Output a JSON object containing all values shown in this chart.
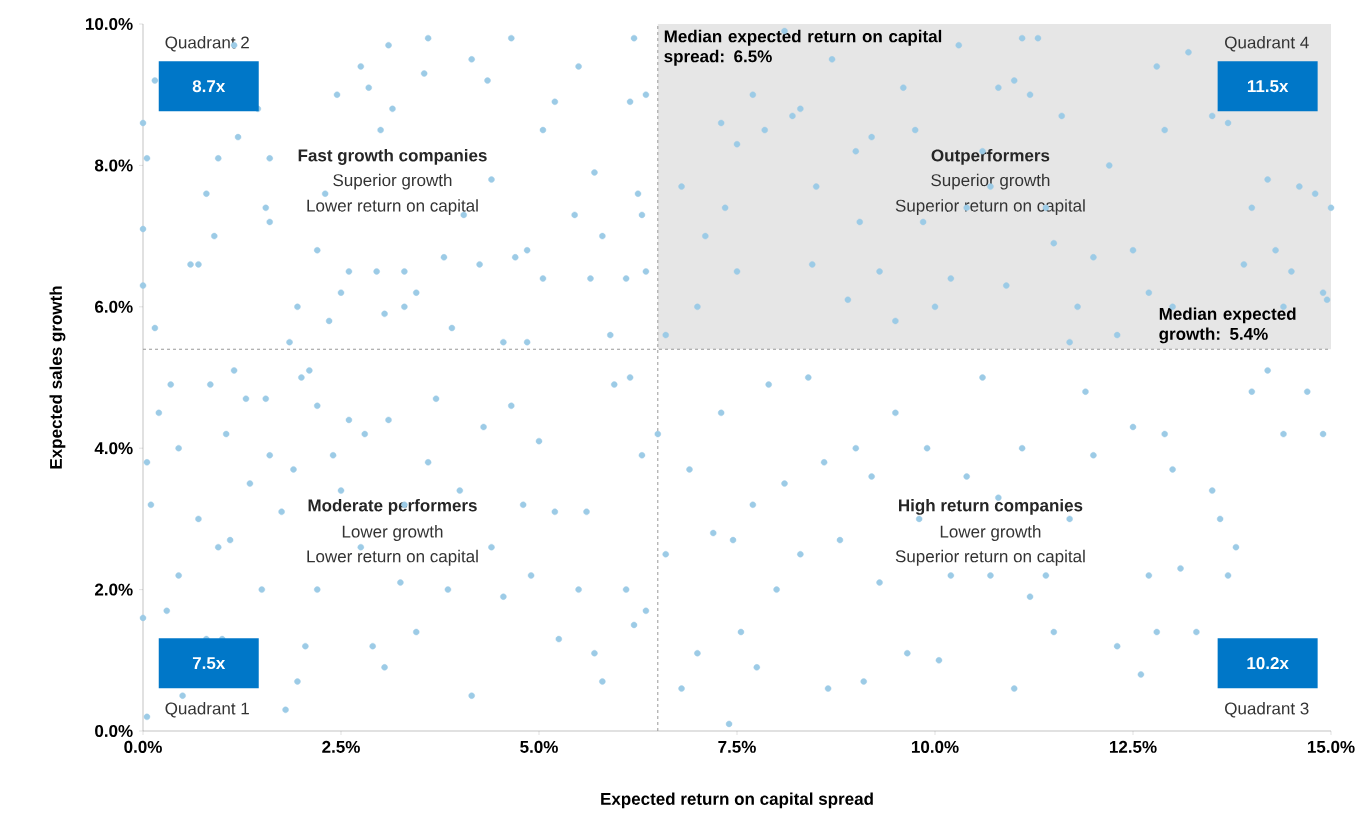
{
  "chart_data": {
    "type": "scatter",
    "xlabel": "Expected return on capital spread",
    "ylabel": "Expected sales growth",
    "marker": "circle",
    "color": "#9ccbe6",
    "xlim": [
      0,
      15
    ],
    "ylim": [
      0,
      10
    ],
    "xticks": [
      {
        "value": 0,
        "label": "0.0%"
      },
      {
        "value": 2.5,
        "label": "2.5%"
      },
      {
        "value": 5,
        "label": "5.0%"
      },
      {
        "value": 7.5,
        "label": "7.5%"
      },
      {
        "value": 10,
        "label": "10.0%"
      },
      {
        "value": 12.5,
        "label": "12.5%"
      },
      {
        "value": 15,
        "label": "15.0%"
      }
    ],
    "yticks": [
      {
        "value": 0,
        "label": "0.0%"
      },
      {
        "value": 2,
        "label": "2.0%"
      },
      {
        "value": 4,
        "label": "4.0%"
      },
      {
        "value": 6,
        "label": "6.0%"
      },
      {
        "value": 8,
        "label": "8.0%"
      },
      {
        "value": 10,
        "label": "10.0%"
      }
    ],
    "ref_lines": [
      {
        "axis": "x",
        "value": 6.5,
        "label": "Median expected return on capital spread: 6.5%",
        "color": "#999999",
        "line_style": "dashed"
      },
      {
        "axis": "y",
        "value": 5.4,
        "label": "Median expected growth: 5.4%",
        "color": "#999999",
        "line_style": "dashed"
      }
    ],
    "bands": [
      {
        "axis": "y",
        "from": 5.4,
        "to": 10,
        "color": "#e6e6e6"
      }
    ],
    "annotations": [
      "Quadrant 2",
      "8.7x",
      "Quadrant 4",
      "11.5x",
      "Quadrant 1",
      "7.5x",
      "Quadrant 3",
      "10.2x",
      "Fast growth companies",
      "Superior growth",
      "Lower return on capital",
      "Outperformers",
      "Superior growth",
      "Superior return on capital",
      "Moderate performers",
      "Lower growth",
      "Lower return on capital",
      "High return companies",
      "Lower growth",
      "Superior return on capital"
    ],
    "x": [
      0.0,
      0.05,
      0.0,
      0.0,
      0.15,
      0.15,
      0.6,
      0.7,
      0.8,
      0.9,
      0.95,
      1.2,
      1.15,
      1.45,
      1.55,
      1.6,
      1.6,
      1.85,
      1.95,
      2.1,
      2.2,
      2.3,
      2.45,
      2.35,
      2.5,
      2.6,
      2.75,
      2.85,
      2.95,
      3.0,
      3.05,
      3.1,
      3.15,
      3.3,
      3.3,
      3.45,
      3.6,
      3.55,
      3.8,
      3.9,
      4.05,
      4.15,
      4.25,
      4.35,
      4.4,
      4.55,
      4.65,
      4.7,
      4.85,
      4.85,
      5.05,
      5.05,
      5.2,
      5.5,
      5.45,
      5.7,
      5.65,
      5.8,
      5.9,
      6.1,
      6.15,
      6.2,
      6.25,
      6.3,
      6.35,
      6.35,
      6.6,
      6.8,
      7.0,
      7.1,
      7.3,
      7.35,
      7.5,
      7.5,
      7.7,
      7.85,
      8.1,
      8.2,
      8.3,
      8.45,
      8.5,
      8.7,
      8.9,
      9.05,
      9.0,
      9.2,
      9.3,
      9.5,
      9.6,
      9.75,
      9.85,
      10.0,
      10.2,
      10.3,
      10.4,
      10.6,
      10.7,
      10.8,
      10.9,
      11.0,
      11.1,
      11.2,
      11.3,
      11.4,
      11.5,
      11.6,
      11.7,
      11.8,
      12.0,
      12.2,
      12.3,
      12.5,
      12.7,
      12.8,
      12.9,
      13.0,
      13.2,
      13.5,
      13.7,
      13.9,
      14.0,
      14.2,
      14.3,
      14.4,
      14.5,
      14.6,
      14.8,
      14.9,
      15.0,
      14.95,
      0.0,
      0.05,
      0.05,
      0.1,
      0.2,
      0.3,
      0.35,
      0.45,
      0.45,
      0.5,
      0.7,
      0.8,
      0.85,
      0.95,
      1.0,
      1.05,
      1.1,
      1.15,
      1.3,
      1.35,
      1.5,
      1.55,
      1.6,
      1.75,
      1.8,
      1.95,
      1.9,
      2.0,
      2.05,
      2.2,
      2.2,
      2.4,
      2.5,
      2.6,
      2.75,
      2.8,
      2.9,
      3.05,
      3.1,
      3.25,
      3.3,
      3.45,
      3.6,
      3.7,
      3.85,
      4.0,
      4.15,
      4.3,
      4.4,
      4.55,
      4.65,
      4.8,
      4.9,
      5.0,
      5.2,
      5.25,
      5.5,
      5.6,
      5.7,
      5.8,
      5.95,
      6.1,
      6.2,
      6.3,
      6.35,
      6.15,
      6.5,
      6.6,
      6.8,
      6.9,
      7.0,
      7.2,
      7.3,
      7.4,
      7.45,
      7.55,
      7.7,
      7.75,
      7.9,
      8.0,
      8.1,
      8.3,
      8.4,
      8.6,
      8.65,
      8.8,
      9.0,
      9.1,
      9.2,
      9.3,
      9.5,
      9.65,
      9.8,
      9.9,
      10.05,
      10.2,
      10.4,
      10.6,
      10.7,
      10.8,
      11.0,
      11.1,
      11.2,
      11.4,
      11.5,
      11.7,
      11.9,
      12.0,
      12.3,
      12.5,
      12.6,
      12.7,
      12.9,
      13.0,
      13.1,
      13.3,
      13.5,
      13.6,
      13.7,
      13.8,
      14.0,
      14.2,
      14.4,
      14.7,
      14.9,
      12.8
    ],
    "values": [
      8.6,
      8.1,
      7.1,
      6.3,
      9.2,
      5.7,
      6.6,
      6.6,
      7.6,
      7.0,
      8.1,
      8.4,
      9.7,
      8.8,
      7.4,
      7.2,
      8.1,
      5.5,
      6.0,
      5.1,
      6.8,
      7.6,
      9.0,
      5.8,
      6.2,
      6.5,
      9.4,
      9.1,
      6.5,
      8.5,
      5.9,
      9.7,
      8.8,
      6.0,
      6.5,
      6.2,
      9.8,
      9.3,
      6.7,
      5.7,
      7.3,
      9.5,
      6.6,
      9.2,
      7.8,
      5.5,
      9.8,
      6.7,
      6.8,
      5.5,
      8.5,
      6.4,
      8.9,
      9.4,
      7.3,
      7.9,
      6.4,
      7.0,
      5.6,
      6.4,
      8.9,
      9.8,
      7.6,
      7.3,
      9.0,
      6.5,
      5.6,
      7.7,
      6.0,
      7.0,
      8.6,
      7.4,
      6.5,
      8.3,
      9.0,
      8.5,
      9.9,
      8.7,
      8.8,
      6.6,
      7.7,
      9.5,
      6.1,
      7.2,
      8.2,
      8.4,
      6.5,
      5.8,
      9.1,
      8.5,
      7.2,
      6.0,
      6.4,
      9.7,
      7.4,
      8.2,
      7.7,
      9.1,
      6.3,
      9.2,
      9.8,
      9.0,
      9.8,
      7.4,
      6.9,
      8.7,
      5.5,
      6.0,
      6.7,
      8.0,
      5.6,
      6.8,
      6.2,
      9.4,
      8.5,
      6.0,
      9.6,
      8.7,
      8.6,
      6.6,
      7.4,
      7.8,
      6.8,
      6.0,
      6.5,
      7.7,
      7.6,
      6.2,
      7.4,
      6.1,
      1.6,
      0.2,
      3.8,
      3.2,
      4.5,
      1.7,
      4.9,
      4.0,
      2.2,
      0.5,
      3.0,
      1.3,
      4.9,
      2.6,
      1.3,
      4.2,
      2.7,
      5.1,
      4.7,
      3.5,
      2.0,
      4.7,
      3.9,
      3.1,
      0.3,
      0.7,
      3.7,
      5.0,
      1.2,
      2.0,
      4.6,
      3.9,
      3.4,
      4.4,
      2.6,
      4.2,
      1.2,
      0.9,
      4.4,
      2.1,
      3.2,
      1.4,
      3.8,
      4.7,
      2.0,
      3.4,
      0.5,
      4.3,
      2.6,
      1.9,
      4.6,
      3.2,
      2.2,
      4.1,
      3.1,
      1.3,
      2.0,
      3.1,
      1.1,
      0.7,
      4.9,
      2.0,
      1.5,
      3.9,
      1.7,
      5.0,
      4.2,
      2.5,
      0.6,
      3.7,
      1.1,
      2.8,
      4.5,
      0.1,
      2.7,
      1.4,
      3.2,
      0.9,
      4.9,
      2.0,
      3.5,
      2.5,
      5.0,
      3.8,
      0.6,
      2.7,
      4.0,
      0.7,
      3.6,
      2.1,
      4.5,
      1.1,
      3.0,
      4.0,
      1.0,
      2.2,
      3.6,
      5.0,
      2.2,
      3.3,
      0.6,
      4.0,
      1.9,
      2.2,
      1.4,
      3.0,
      4.8,
      3.9,
      1.2,
      4.3,
      0.8,
      2.2,
      4.2,
      3.7,
      2.3,
      1.4,
      3.4,
      3.0,
      2.2,
      2.6,
      4.8,
      5.1,
      4.2,
      4.8,
      4.2,
      1.4
    ]
  }
}
